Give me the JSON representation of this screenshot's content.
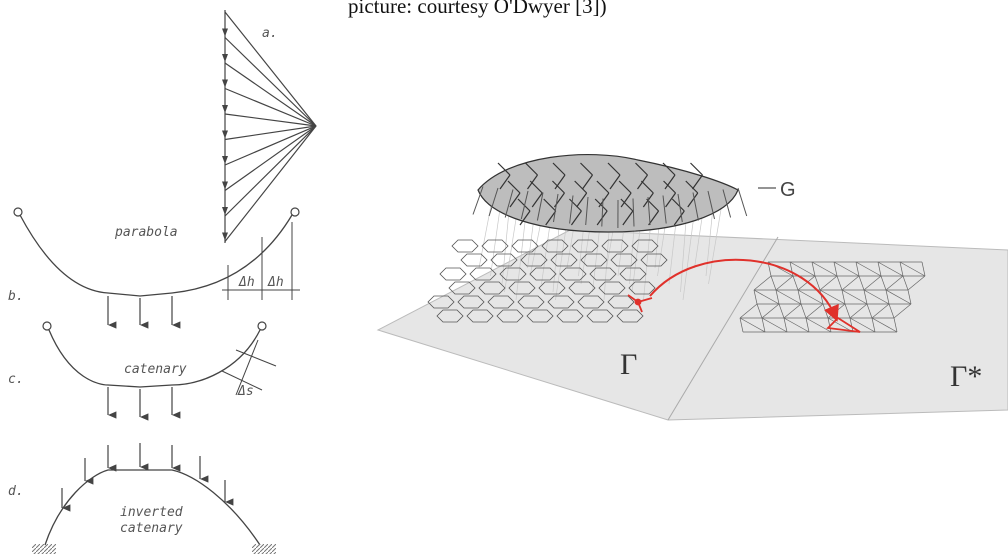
{
  "caption": "picture: courtesy O'Dwyer [3])",
  "left_figure": {
    "panels": {
      "a": "a.",
      "b": "b.",
      "c": "c.",
      "d": "d."
    },
    "curve_labels": {
      "parabola": "parabola",
      "catenary": "catenary",
      "inverted_line1": "inverted",
      "inverted_line2": "catenary"
    },
    "dimensions": {
      "dh1": "Δh",
      "dh2": "Δh",
      "ds": "Δs"
    }
  },
  "right_figure": {
    "graph_label": "G",
    "plane_label": "Γ",
    "dual_label": "Γ*"
  },
  "colors": {
    "line": "#444444",
    "highlight": "#e0312b",
    "plane": "#e6e6e6",
    "dome_fill": "#bdbdbd"
  }
}
